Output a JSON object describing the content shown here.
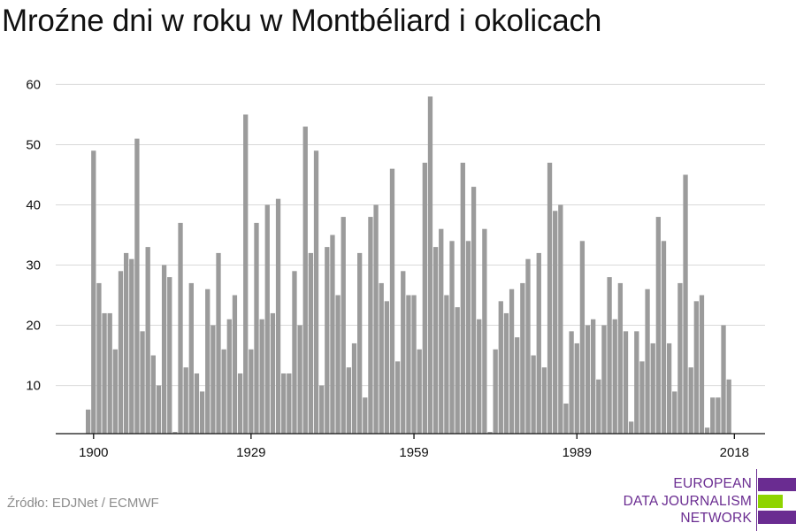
{
  "title": "Mroźne dni w roku w Montbéliard i okolicach",
  "source": "Źródło: EDJNet / ECMWF",
  "logo": {
    "lines": [
      "EUROPEAN",
      "DATA JOURNALISM",
      "NETWORK"
    ],
    "colors": {
      "purple": "#6a2c91",
      "green": "#8fd400"
    }
  },
  "colors": {
    "bar": "#9b9b9b",
    "grid": "#d9d9d9",
    "axis": "#111111"
  },
  "chart_data": {
    "type": "bar",
    "x_start": 1899,
    "x_end": 2019,
    "values": [
      6,
      49,
      27,
      22,
      22,
      16,
      29,
      32,
      31,
      51,
      19,
      33,
      15,
      10,
      30,
      28,
      0,
      37,
      13,
      27,
      12,
      9,
      26,
      20,
      32,
      16,
      21,
      25,
      12,
      55,
      16,
      37,
      21,
      40,
      22,
      41,
      12,
      12,
      29,
      20,
      53,
      32,
      49,
      10,
      33,
      35,
      25,
      38,
      13,
      17,
      32,
      8,
      38,
      40,
      27,
      24,
      46,
      14,
      29,
      25,
      25,
      16,
      47,
      58,
      33,
      36,
      25,
      34,
      23,
      47,
      34,
      43,
      21,
      36,
      0,
      16,
      24,
      22,
      26,
      18,
      27,
      31,
      15,
      32,
      13,
      47,
      39,
      40,
      7,
      19,
      17,
      34,
      20,
      21,
      11,
      20,
      28,
      21,
      27,
      19,
      4,
      19,
      14,
      26,
      17,
      38,
      34,
      17,
      9,
      27,
      45,
      13,
      24,
      25,
      3,
      8,
      8,
      20,
      11
    ],
    "x_ticks": [
      "1900",
      "1929",
      "1959",
      "1989",
      "2018"
    ],
    "x_tick_years": [
      1900,
      1929,
      1959,
      1989,
      2018
    ],
    "y_ticks": [
      "10",
      "20",
      "30",
      "40",
      "50",
      "60"
    ],
    "y_tick_values": [
      10,
      20,
      30,
      40,
      50,
      60
    ],
    "ylim": [
      2,
      63
    ],
    "grid": true,
    "xlabel": "",
    "ylabel": ""
  }
}
